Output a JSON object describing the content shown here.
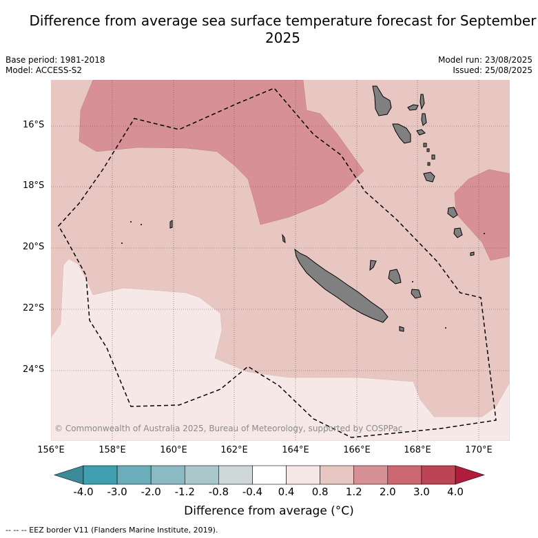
{
  "title": "Difference from average sea surface temperature forecast for September 2025",
  "meta": {
    "base_period": "Base period: 1981-2018",
    "model": "Model: ACCESS-S2",
    "model_run": "Model run: 23/08/2025",
    "issued": "Issued: 25/08/2025"
  },
  "axes": {
    "lat_labels": [
      "16°S",
      "18°S",
      "20°S",
      "22°S",
      "24°S"
    ],
    "lon_labels": [
      "156°E",
      "158°E",
      "160°E",
      "162°E",
      "164°E",
      "166°E",
      "168°E",
      "170°E"
    ]
  },
  "colorbar": {
    "tick_labels": [
      "-4.0",
      "-3.0",
      "-2.0",
      "-1.2",
      "-0.8",
      "-0.4",
      "0.4",
      "0.8",
      "1.2",
      "2.0",
      "3.0",
      "4.0"
    ],
    "colors": [
      "#40a0b0",
      "#6aaebc",
      "#8cbac4",
      "#aac8cc",
      "#cfd8d9",
      "#ffffff",
      "#f6e8e7",
      "#e8c6c2",
      "#d69096",
      "#cb6872",
      "#bc4455"
    ],
    "low_extend_color": "#3a8a98",
    "high_extend_color": "#b01c3c",
    "title": "Difference from average (°C)"
  },
  "copyright": "© Commonwealth of Australia 2025, Bureau of Meteorology, supported by COSPPac",
  "footnote": "-- -- -- EEZ border V11 (Flanders Marine Institute, 2019).",
  "colors": {
    "anomaly_0_4_to_0_8": "#f6e8e7",
    "anomaly_0_8_to_1_2": "#e8c6c2",
    "anomaly_1_2_to_2_0": "#d69096",
    "land": "#808080"
  }
}
